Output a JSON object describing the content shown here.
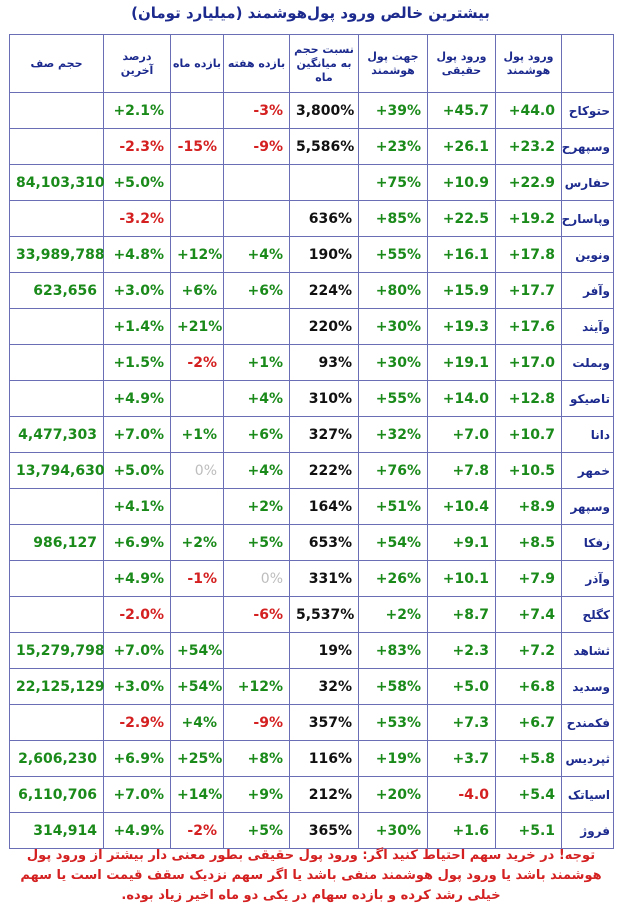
{
  "title": "بیشترین خالص ورود پول‌هوشمند (میلیارد تومان)",
  "headers": {
    "name": "",
    "smart": "ورود پول هوشمند",
    "real": "ورود پول حقیقی",
    "direction": "جهت پول هوشمند",
    "ratio": "نسبت حجم به میانگین ماه",
    "week": "بازده هفته",
    "month": "بازده ماه",
    "last": "درصد آخرین",
    "queue": "حجم صف"
  },
  "rows": [
    {
      "name": "حتوکاح",
      "smart": "+44.0",
      "real": "+45.7",
      "direction": "+39%",
      "ratio": "3,800%",
      "week": "-3%",
      "month": "",
      "last": "+2.1%",
      "queue": ""
    },
    {
      "name": "وسپهرح",
      "smart": "+23.2",
      "real": "+26.1",
      "direction": "+23%",
      "ratio": "5,586%",
      "week": "-9%",
      "month": "-15%",
      "last": "-2.3%",
      "queue": ""
    },
    {
      "name": "حفارس",
      "smart": "+22.9",
      "real": "+10.9",
      "direction": "+75%",
      "ratio": "",
      "week": "",
      "month": "",
      "last": "+5.0%",
      "queue": "84,103,310"
    },
    {
      "name": "وپاسارح",
      "smart": "+19.2",
      "real": "+22.5",
      "direction": "+85%",
      "ratio": "636%",
      "week": "",
      "month": "",
      "last": "-3.2%",
      "queue": ""
    },
    {
      "name": "ونوین",
      "smart": "+17.8",
      "real": "+16.1",
      "direction": "+55%",
      "ratio": "190%",
      "week": "+4%",
      "month": "+12%",
      "last": "+4.8%",
      "queue": "33,989,788"
    },
    {
      "name": "وآفر",
      "smart": "+17.7",
      "real": "+15.9",
      "direction": "+80%",
      "ratio": "224%",
      "week": "+6%",
      "month": "+6%",
      "last": "+3.0%",
      "queue": "623,656"
    },
    {
      "name": "وآیند",
      "smart": "+17.6",
      "real": "+19.3",
      "direction": "+30%",
      "ratio": "220%",
      "week": "",
      "month": "+21%",
      "last": "+1.4%",
      "queue": ""
    },
    {
      "name": "وبملت",
      "smart": "+17.0",
      "real": "+19.1",
      "direction": "+30%",
      "ratio": "93%",
      "week": "+1%",
      "month": "-2%",
      "last": "+1.5%",
      "queue": ""
    },
    {
      "name": "تاصیکو",
      "smart": "+12.8",
      "real": "+14.0",
      "direction": "+55%",
      "ratio": "310%",
      "week": "+4%",
      "month": "",
      "last": "+4.9%",
      "queue": ""
    },
    {
      "name": "دانا",
      "smart": "+10.7",
      "real": "+7.0",
      "direction": "+32%",
      "ratio": "327%",
      "week": "+6%",
      "month": "+1%",
      "last": "+7.0%",
      "queue": "4,477,303"
    },
    {
      "name": "خمهر",
      "smart": "+10.5",
      "real": "+7.8",
      "direction": "+76%",
      "ratio": "222%",
      "week": "+4%",
      "month": "0%",
      "last": "+5.0%",
      "queue": "13,794,630"
    },
    {
      "name": "وسپهر",
      "smart": "+8.9",
      "real": "+10.4",
      "direction": "+51%",
      "ratio": "164%",
      "week": "+2%",
      "month": "",
      "last": "+4.1%",
      "queue": ""
    },
    {
      "name": "زفکا",
      "smart": "+8.5",
      "real": "+9.1",
      "direction": "+54%",
      "ratio": "653%",
      "week": "+5%",
      "month": "+2%",
      "last": "+6.9%",
      "queue": "986,127"
    },
    {
      "name": "وآذر",
      "smart": "+7.9",
      "real": "+10.1",
      "direction": "+26%",
      "ratio": "331%",
      "week": "0%",
      "month": "-1%",
      "last": "+4.9%",
      "queue": ""
    },
    {
      "name": "کگلح",
      "smart": "+7.4",
      "real": "+8.7",
      "direction": "+2%",
      "ratio": "5,537%",
      "week": "-6%",
      "month": "",
      "last": "-2.0%",
      "queue": ""
    },
    {
      "name": "ثشاهد",
      "smart": "+7.2",
      "real": "+2.3",
      "direction": "+83%",
      "ratio": "19%",
      "week": "",
      "month": "+54%",
      "last": "+7.0%",
      "queue": "15,279,798"
    },
    {
      "name": "وسدید",
      "smart": "+6.8",
      "real": "+5.0",
      "direction": "+58%",
      "ratio": "32%",
      "week": "+12%",
      "month": "+54%",
      "last": "+3.0%",
      "queue": "22,125,129"
    },
    {
      "name": "فکمندح",
      "smart": "+6.7",
      "real": "+7.3",
      "direction": "+53%",
      "ratio": "357%",
      "week": "-9%",
      "month": "+4%",
      "last": "-2.9%",
      "queue": ""
    },
    {
      "name": "ثپردیس",
      "smart": "+5.8",
      "real": "+3.7",
      "direction": "+19%",
      "ratio": "116%",
      "week": "+8%",
      "month": "+25%",
      "last": "+6.9%",
      "queue": "2,606,230"
    },
    {
      "name": "اسیاتک",
      "smart": "+5.4",
      "real": "-4.0",
      "direction": "+20%",
      "ratio": "212%",
      "week": "+9%",
      "month": "+14%",
      "last": "+7.0%",
      "queue": "6,110,706"
    },
    {
      "name": "فروژ",
      "smart": "+5.1",
      "real": "+1.6",
      "direction": "+30%",
      "ratio": "365%",
      "week": "+5%",
      "month": "-2%",
      "last": "+4.9%",
      "queue": "314,914"
    }
  ],
  "note": "توجه! در خرید سهم احتیاط کنید اگر: ورود پول حقیقی بطور معنی دار بیشتر از ورود پول هوشمند باشد یا ورود پول هوشمند منفی باشد یا اگر سهم نزدیک سقف قیمت است یا سهم خیلی رشد کرده و بازده سهام در یکی دو ماه اخیر زیاد بوده.",
  "colors": {
    "header_text": "#1c2a8e",
    "positive": "#1a8a1a",
    "negative": "#d42020",
    "neutral": "#111111",
    "zero": "#bdbdbd",
    "border": "#6a6fb5"
  }
}
